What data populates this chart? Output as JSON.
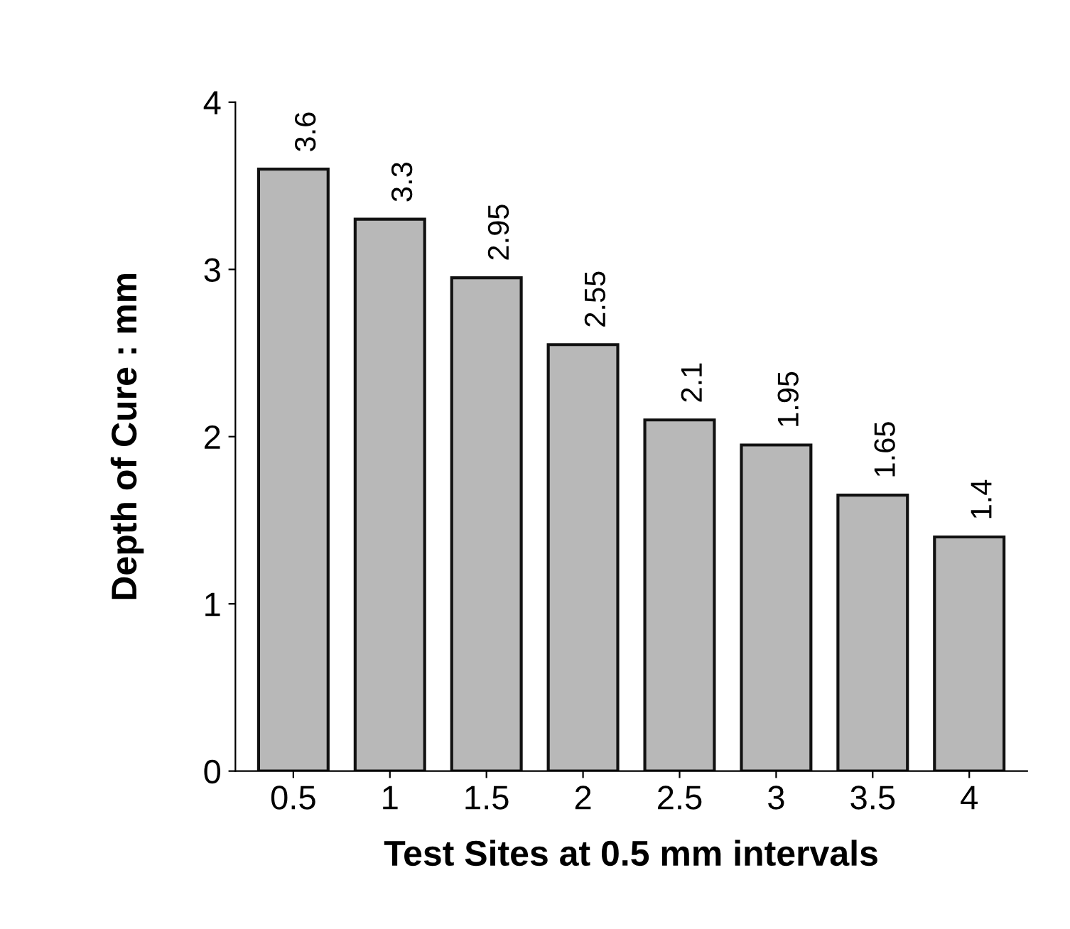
{
  "chart_data": {
    "type": "bar",
    "xlabel": "Test Sites at 0.5 mm intervals",
    "ylabel": "Depth of Cure : mm",
    "categories": [
      "0.5",
      "1",
      "1.5",
      "2",
      "2.5",
      "3",
      "3.5",
      "4"
    ],
    "values": [
      3.6,
      3.3,
      2.95,
      2.55,
      2.1,
      1.95,
      1.65,
      1.4
    ],
    "color": "#b8b8b8",
    "ylim": [
      0,
      4
    ],
    "yticks": [
      0,
      1,
      2,
      3,
      4
    ],
    "data_labels": true,
    "grid": false,
    "legend": false
  }
}
